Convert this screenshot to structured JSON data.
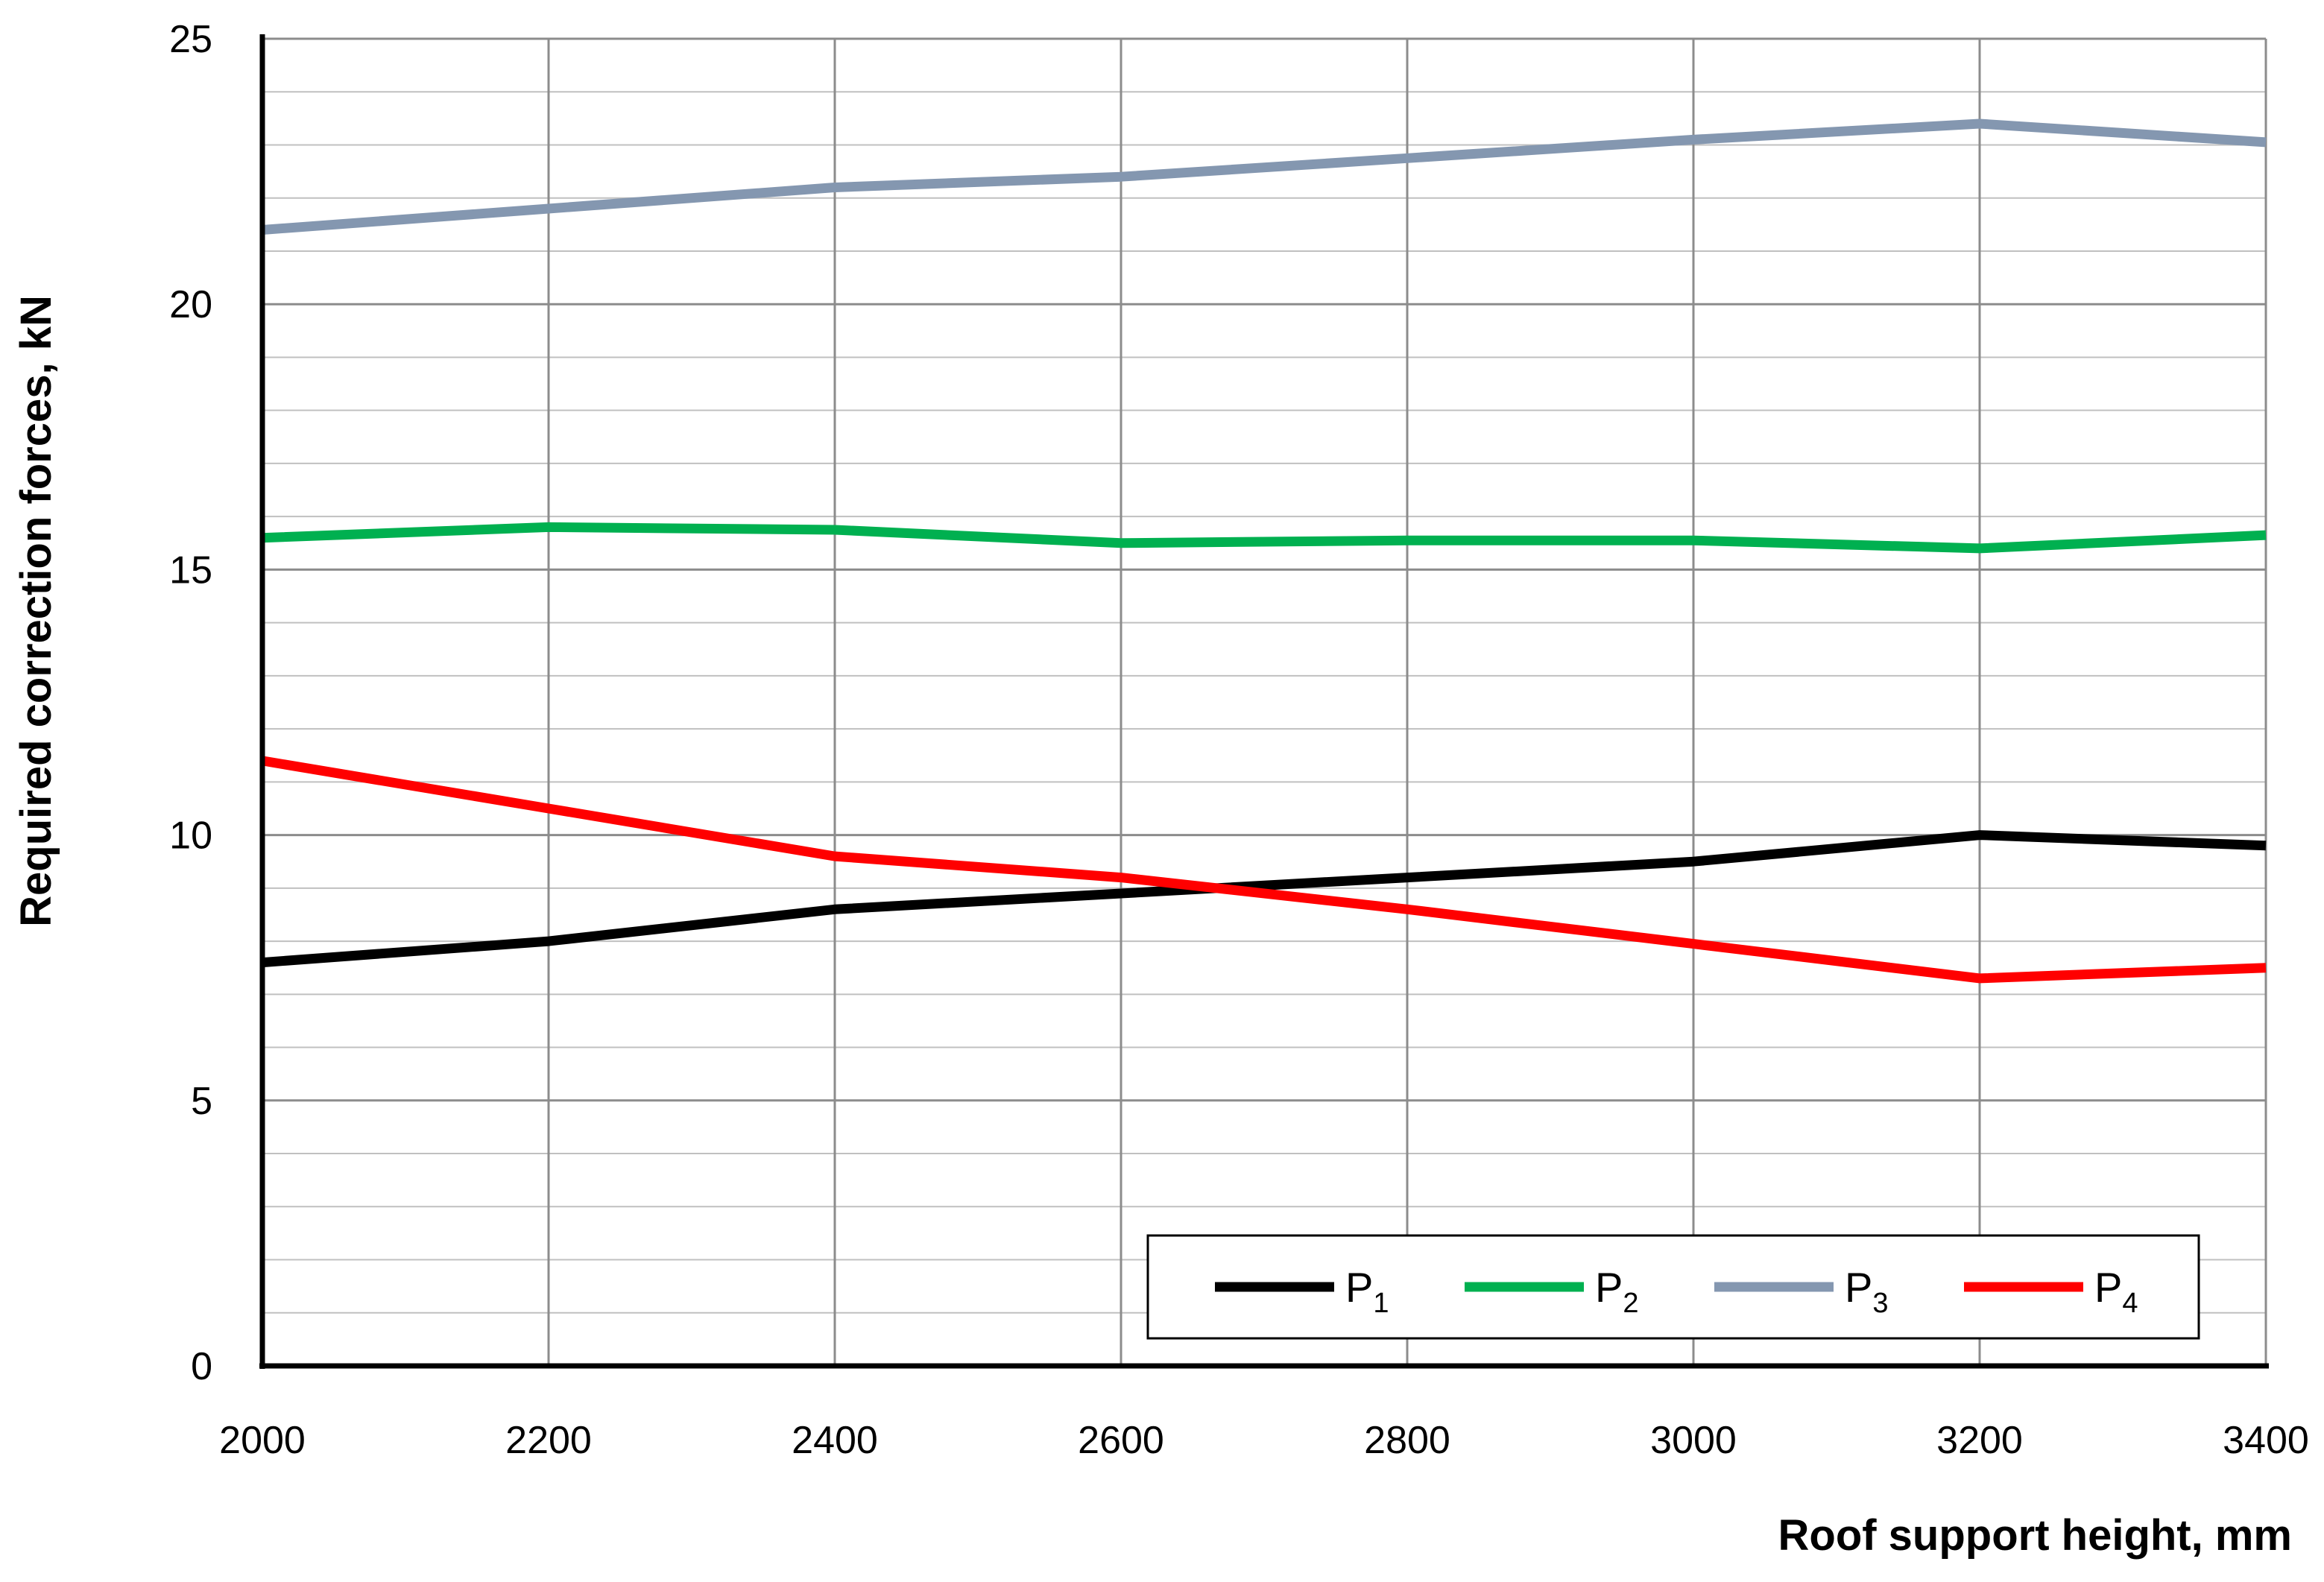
{
  "chart_data": {
    "type": "line",
    "title": "",
    "xlabel": "Roof support  height, mm",
    "ylabel": "Required correction forces, kN",
    "x": [
      2000,
      2200,
      2400,
      2600,
      2800,
      3000,
      3200,
      3400
    ],
    "xlim": [
      2000,
      3400
    ],
    "ylim": [
      0,
      25
    ],
    "x_ticks": [
      "2000",
      "2200",
      "2400",
      "2600",
      "2800",
      "3000",
      "3200",
      "3400"
    ],
    "y_ticks": [
      "0",
      "5",
      "10",
      "15",
      "20",
      "25"
    ],
    "grid": true,
    "legend_position": "bottom-right",
    "series": [
      {
        "name_base": "P",
        "name_sub": "1",
        "color": "#000000",
        "values": [
          7.6,
          8.0,
          8.6,
          8.9,
          9.2,
          9.5,
          10.0,
          9.8
        ]
      },
      {
        "name_base": "P",
        "name_sub": "2",
        "color": "#00b050",
        "values": [
          15.6,
          15.8,
          15.75,
          15.5,
          15.55,
          15.55,
          15.4,
          15.65
        ]
      },
      {
        "name_base": "P",
        "name_sub": "3",
        "color": "#8497b0",
        "values": [
          21.4,
          21.8,
          22.2,
          22.4,
          22.75,
          23.1,
          23.4,
          23.05
        ]
      },
      {
        "name_base": "P",
        "name_sub": "4",
        "color": "#ff0000",
        "values": [
          11.4,
          10.5,
          9.6,
          9.2,
          8.6,
          7.95,
          7.3,
          7.5
        ]
      }
    ]
  }
}
